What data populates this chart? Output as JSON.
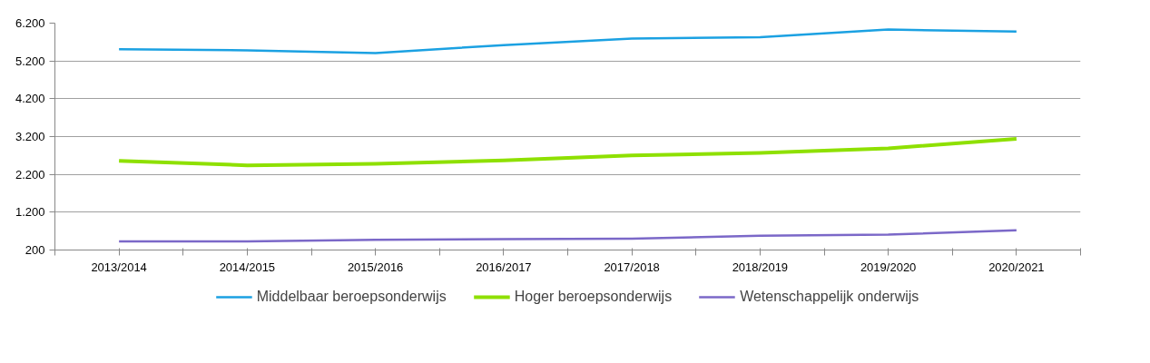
{
  "chart_data": {
    "type": "line",
    "categories": [
      "2013/2014",
      "2014/2015",
      "2015/2016",
      "2016/2017",
      "2017/2018",
      "2018/2019",
      "2019/2020",
      "2020/2021"
    ],
    "series": [
      {
        "name": "Middelbaar beroepsonderwijs",
        "color": "#1ba1e2",
        "values": [
          5510,
          5480,
          5410,
          5620,
          5790,
          5830,
          6030,
          5980
        ]
      },
      {
        "name": "Hoger beroepsonderwijs",
        "color": "#8ee000",
        "values": [
          2560,
          2440,
          2480,
          2570,
          2700,
          2770,
          2890,
          3140
        ]
      },
      {
        "name": "Wetenschappelijk onderwijs",
        "color": "#7b68c8",
        "values": [
          430,
          430,
          470,
          490,
          500,
          580,
          610,
          720
        ]
      }
    ],
    "ylim": [
      200,
      6200
    ],
    "yticks": [
      {
        "value": 200,
        "label": "200"
      },
      {
        "value": 1200,
        "label": "1.200"
      },
      {
        "value": 2200,
        "label": "2.200"
      },
      {
        "value": 3200,
        "label": "3.200"
      },
      {
        "value": 4200,
        "label": "4.200"
      },
      {
        "value": 5200,
        "label": "5.200"
      },
      {
        "value": 6200,
        "label": "6.200"
      }
    ],
    "grid": "y",
    "legend": "bottom",
    "marker": "none",
    "line_style": "solid"
  }
}
